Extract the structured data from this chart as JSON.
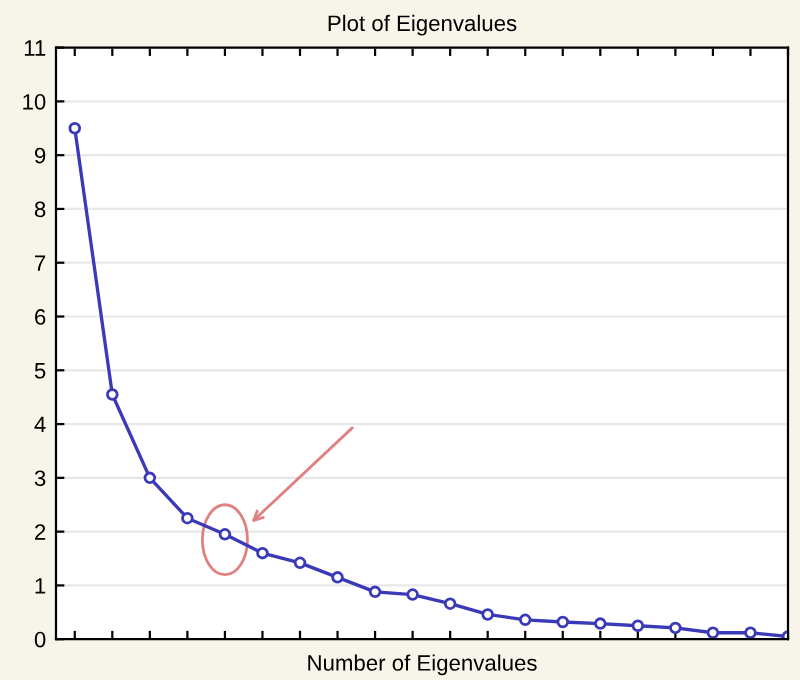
{
  "chart_data": {
    "type": "line",
    "title": "Plot of Eigenvalues",
    "xlabel": "Number of Eigenvalues",
    "categories": [
      null,
      null,
      null,
      null,
      null,
      null,
      null,
      null,
      null,
      null,
      null,
      null,
      null,
      null,
      null,
      null,
      null,
      null,
      null,
      null
    ],
    "series": [
      {
        "color": "#3a3ab8",
        "values": [
          9.5,
          4.55,
          3.0,
          2.25,
          1.95,
          1.6,
          1.42,
          1.15,
          0.88,
          0.83,
          0.66,
          0.46,
          0.36,
          0.32,
          0.29,
          0.25,
          0.21,
          0.12,
          0.12,
          0.05
        ]
      }
    ],
    "ylim": [
      0,
      11
    ],
    "yticks": [
      0,
      1,
      2,
      3,
      4,
      5,
      6,
      7,
      8,
      9,
      10,
      11
    ],
    "grid": "y",
    "marker": "circle",
    "line_style": "solid"
  }
}
